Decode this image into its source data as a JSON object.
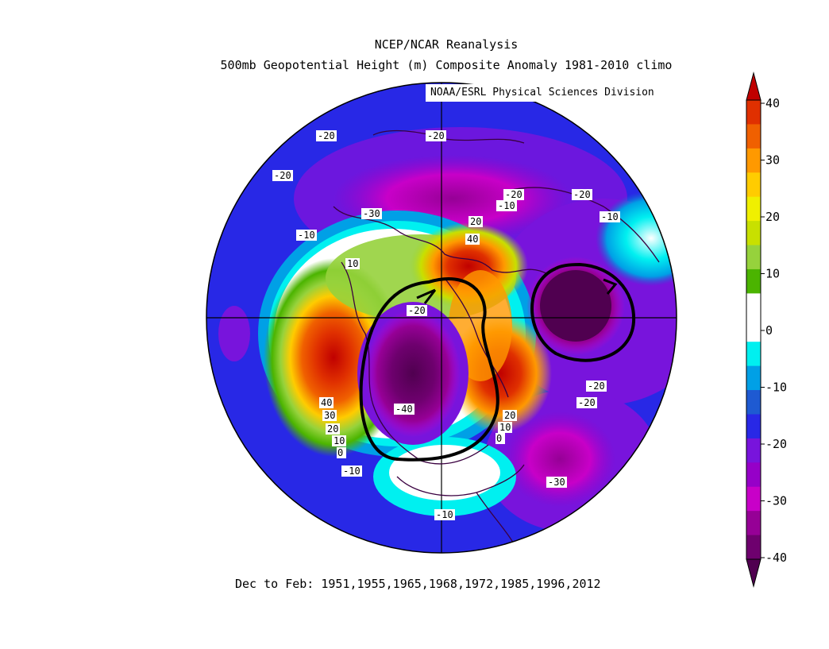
{
  "header": {
    "title_line1": "NCEP/NCAR Reanalysis",
    "title_line2": "500mb Geopotential Height (m) Composite Anomaly 1981-2010 climo",
    "credit": "NOAA/ESRL Physical Sciences Division"
  },
  "footer": {
    "text": "Dec to Feb: 1951,1955,1965,1968,1972,1985,1996,2012"
  },
  "colorbar": {
    "ticks": [
      "40",
      "30",
      "20",
      "10",
      "0",
      "-10",
      "-20",
      "-30",
      "-40"
    ],
    "colors": [
      "#c00000",
      "#e03000",
      "#f06000",
      "#ff9900",
      "#ffcc00",
      "#f0f000",
      "#c8e000",
      "#96d23c",
      "#4bb400",
      "#ffffff",
      "#ffffff",
      "#00f0f0",
      "#00a0e6",
      "#1e5ad2",
      "#2828e6",
      "#7814dc",
      "#9600c8",
      "#c800c8",
      "#960096",
      "#6e006e",
      "#500050"
    ]
  },
  "map": {
    "contour_labels": [
      {
        "text": "-20"
      },
      {
        "text": "-20"
      },
      {
        "text": "-20"
      },
      {
        "text": "-30"
      },
      {
        "text": "-10"
      },
      {
        "text": "10"
      },
      {
        "text": "-20"
      },
      {
        "text": "-10"
      },
      {
        "text": "20"
      },
      {
        "text": "40"
      },
      {
        "text": "-20"
      },
      {
        "text": "-10"
      },
      {
        "text": "-20"
      },
      {
        "text": "-40"
      },
      {
        "text": "-20"
      },
      {
        "text": "-20"
      },
      {
        "text": "40"
      },
      {
        "text": "30"
      },
      {
        "text": "20"
      },
      {
        "text": "10"
      },
      {
        "text": "0"
      },
      {
        "text": "20"
      },
      {
        "text": "10"
      },
      {
        "text": "0"
      },
      {
        "text": "-10"
      },
      {
        "text": "-30"
      },
      {
        "text": "-10"
      }
    ]
  }
}
